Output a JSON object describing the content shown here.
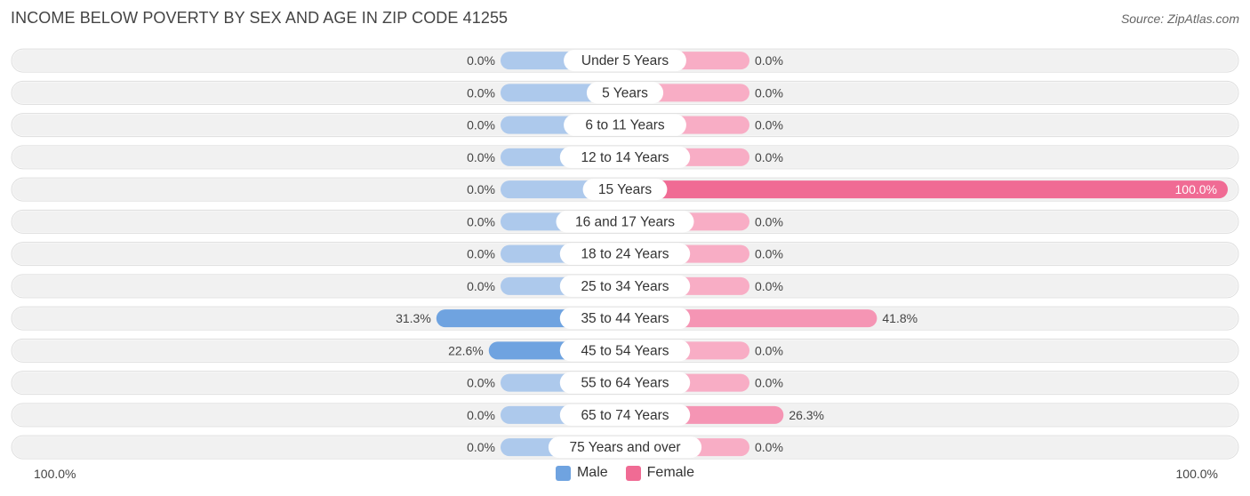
{
  "title": "INCOME BELOW POVERTY BY SEX AND AGE IN ZIP CODE 41255",
  "source": "Source: ZipAtlas.com",
  "axis": {
    "left_label": "100.0%",
    "right_label": "100.0%"
  },
  "legend": {
    "male_label": "Male",
    "female_label": "Female",
    "male_color": "#6fa3e0",
    "female_color": "#f06b94"
  },
  "colors": {
    "male_full": "#6fa3e0",
    "male_light": "#adc9ec",
    "female_full": "#f06b94",
    "female_mid": "#f595b4",
    "female_light": "#f8adc5",
    "row_bg": "#f1f1f1"
  },
  "chart_data": {
    "type": "bar",
    "orientation": "horizontal-diverging",
    "title": "INCOME BELOW POVERTY BY SEX AND AGE IN ZIP CODE 41255",
    "xlim": [
      -100,
      100
    ],
    "categories": [
      "Under 5 Years",
      "5 Years",
      "6 to 11 Years",
      "12 to 14 Years",
      "15 Years",
      "16 and 17 Years",
      "18 to 24 Years",
      "25 to 34 Years",
      "35 to 44 Years",
      "45 to 54 Years",
      "55 to 64 Years",
      "65 to 74 Years",
      "75 Years and over"
    ],
    "series": [
      {
        "name": "Male",
        "values": [
          0.0,
          0.0,
          0.0,
          0.0,
          0.0,
          0.0,
          0.0,
          0.0,
          31.3,
          22.6,
          0.0,
          0.0,
          0.0
        ],
        "labels": [
          "0.0%",
          "0.0%",
          "0.0%",
          "0.0%",
          "0.0%",
          "0.0%",
          "0.0%",
          "0.0%",
          "31.3%",
          "22.6%",
          "0.0%",
          "0.0%",
          "0.0%"
        ]
      },
      {
        "name": "Female",
        "values": [
          0.0,
          0.0,
          0.0,
          0.0,
          100.0,
          0.0,
          0.0,
          0.0,
          41.8,
          0.0,
          0.0,
          26.3,
          0.0
        ],
        "labels": [
          "0.0%",
          "0.0%",
          "0.0%",
          "0.0%",
          "100.0%",
          "0.0%",
          "0.0%",
          "0.0%",
          "41.8%",
          "0.0%",
          "0.0%",
          "26.3%",
          "0.0%"
        ]
      }
    ],
    "legend_position": "bottom-center"
  }
}
